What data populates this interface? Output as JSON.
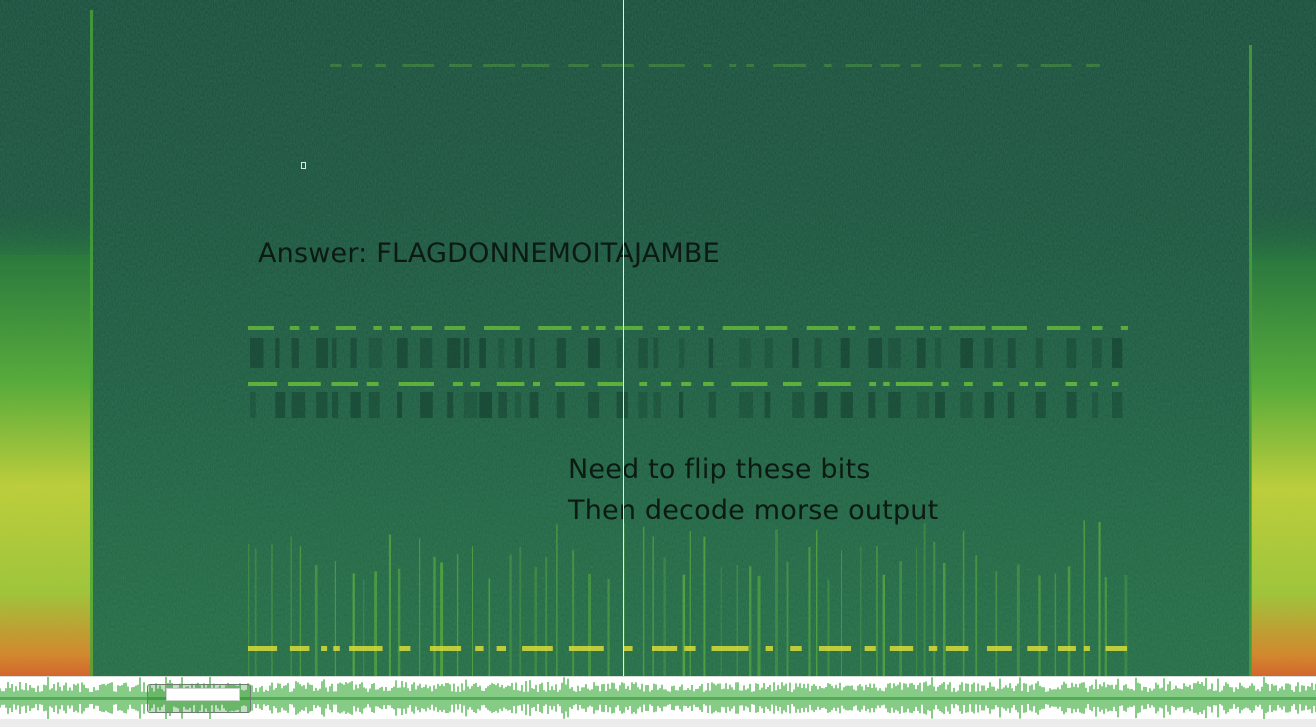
{
  "annotations": {
    "answer": "Answer: FLAGDONNEMOITAJAMBE",
    "note_line_1": "Need to flip these bits",
    "note_line_2": "Then decode morse output"
  },
  "colors": {
    "spectrogram_dark": "#1b4a3c",
    "spectrogram_mid": "#236544",
    "signal_green": "#6cc33a",
    "signal_yellow": "#d7dc3a",
    "signal_orange": "#e07a2a",
    "waveform_green": "#43b043",
    "annotation_text": "#0b1a12"
  }
}
